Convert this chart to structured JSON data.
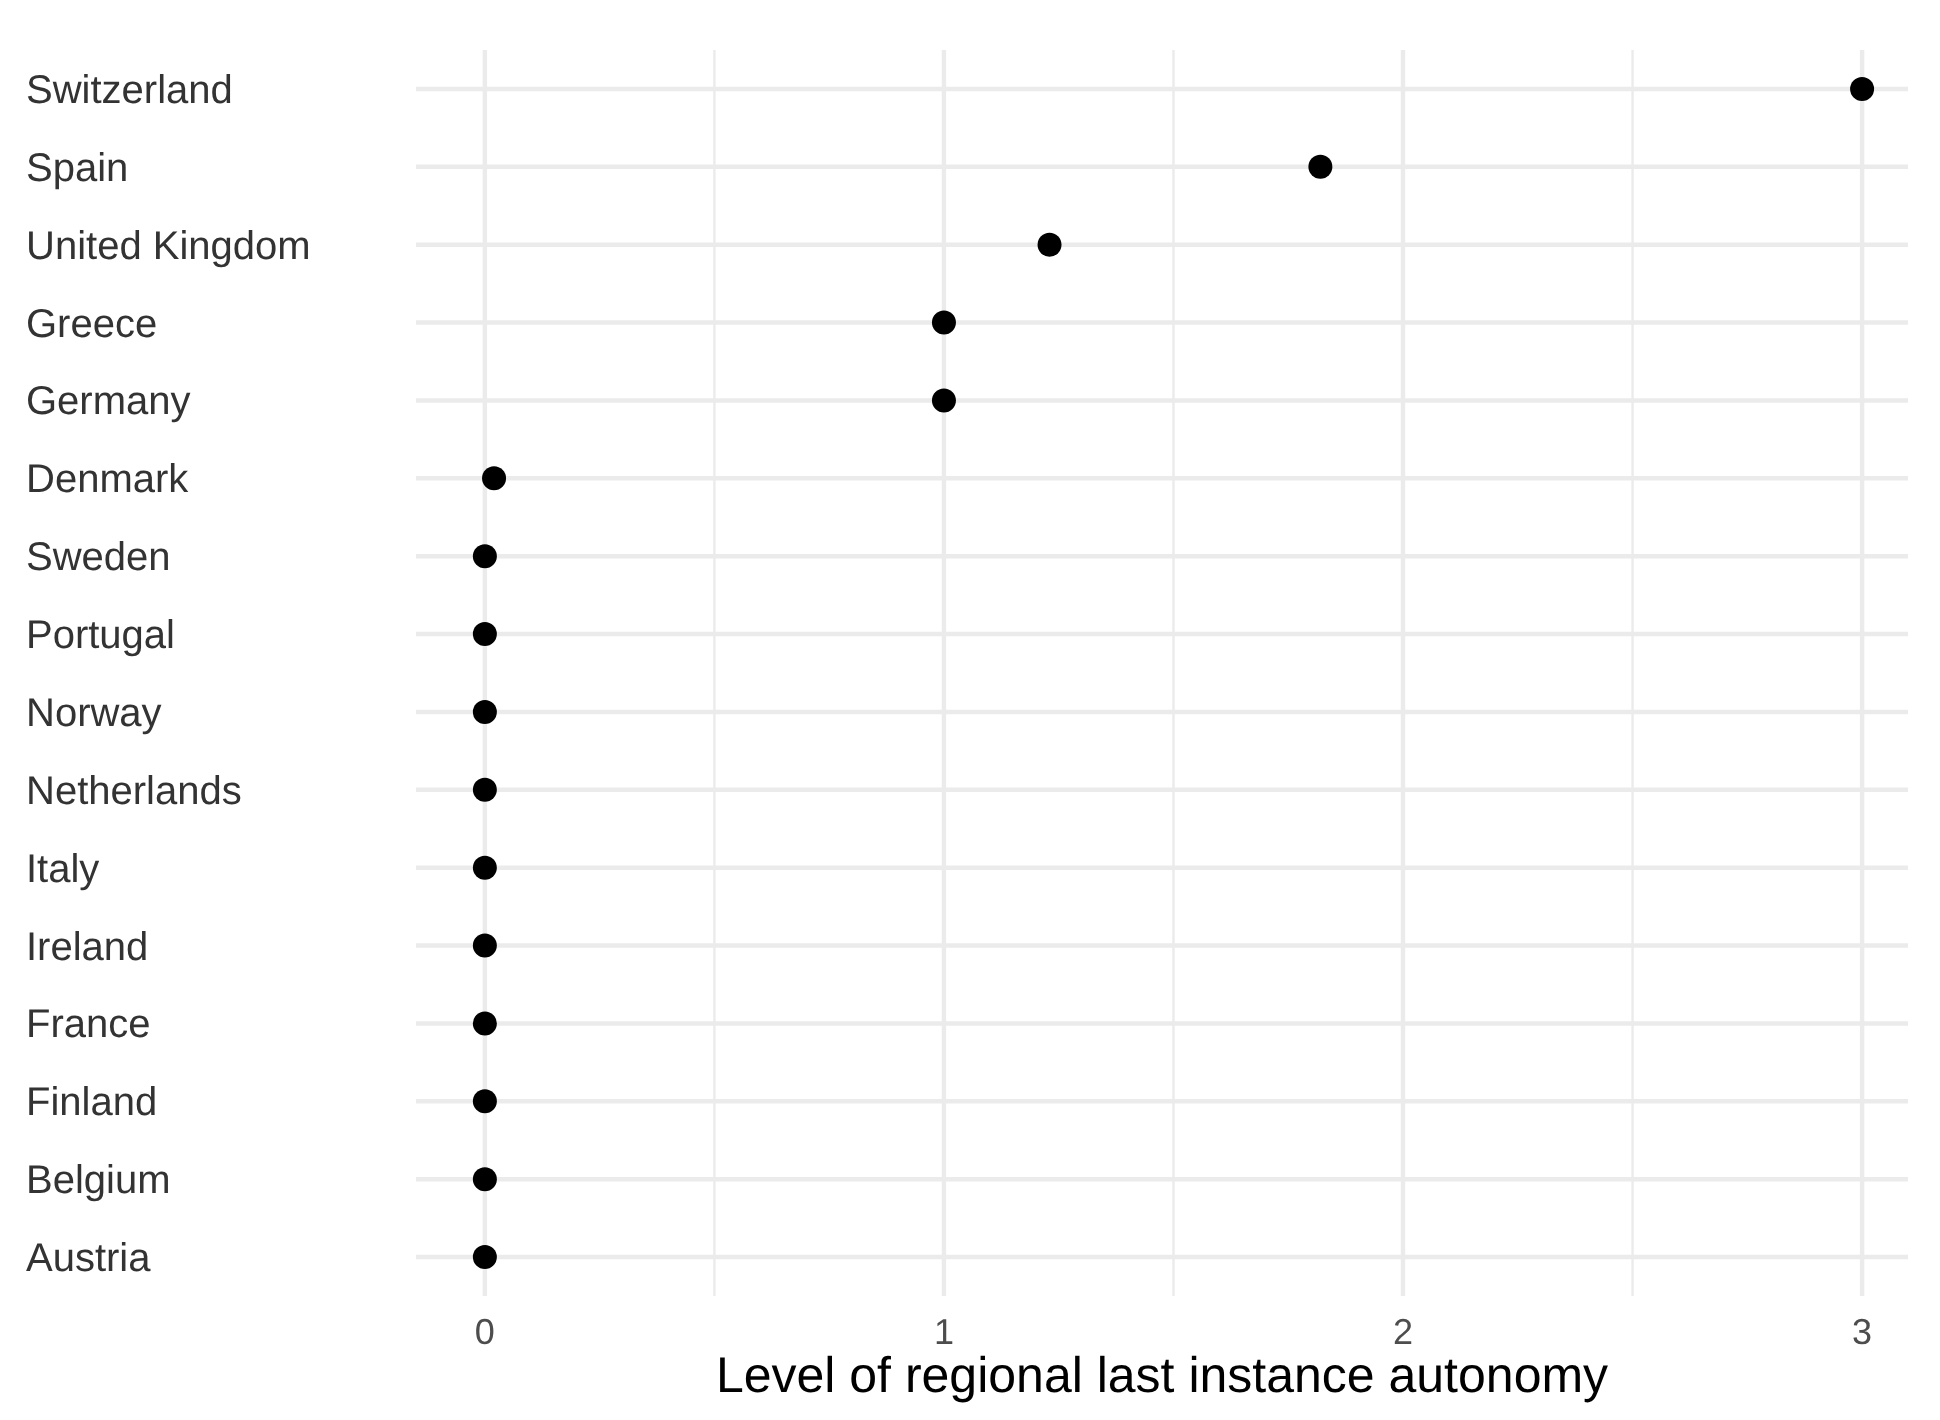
{
  "chart_data": {
    "type": "scatter",
    "orientation": "horizontal",
    "xlabel": "Level of regional last instance autonomy",
    "categories": [
      "Switzerland",
      "Spain",
      "United Kingdom",
      "Greece",
      "Germany",
      "Denmark",
      "Sweden",
      "Portugal",
      "Norway",
      "Netherlands",
      "Italy",
      "Ireland",
      "France",
      "Finland",
      "Belgium",
      "Austria"
    ],
    "values": [
      3,
      1.82,
      1.23,
      1,
      1,
      0.02,
      0,
      0,
      0,
      0,
      0,
      0,
      0,
      0,
      0,
      0
    ],
    "color": "#000000",
    "marker": "circle",
    "xlim": [
      -0.15,
      3.1
    ],
    "xticks": [
      0,
      {
        "value": 0.5,
        "label": null
      },
      1,
      {
        "value": 1.5,
        "label": null
      },
      2,
      {
        "value": 2.5,
        "label": null
      },
      3
    ],
    "grid": true
  }
}
